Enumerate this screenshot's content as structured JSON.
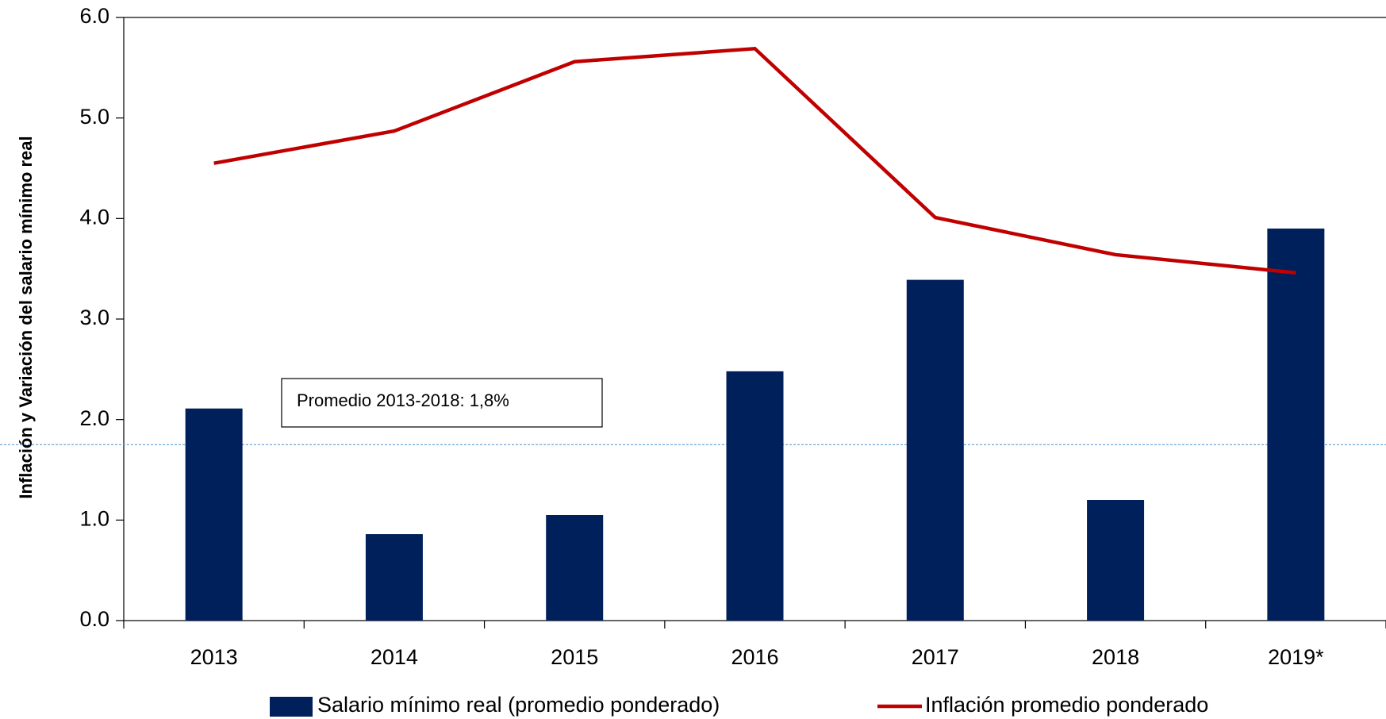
{
  "chart_data": {
    "type": "bar_line",
    "y_axis_label": "Inflación y Variación del salario mínimo real",
    "categories": [
      "2013",
      "2014",
      "2015",
      "2016",
      "2017",
      "2018",
      "2019*"
    ],
    "series": [
      {
        "name": "Salario mínimo real (promedio ponderado)",
        "type": "bar",
        "color": "#00205c",
        "values": [
          2.11,
          0.86,
          1.05,
          2.48,
          3.39,
          1.2,
          3.9
        ]
      },
      {
        "name": "Inflación promedio ponderado",
        "type": "line",
        "color": "#c00000",
        "values": [
          4.55,
          4.87,
          5.56,
          5.69,
          4.01,
          3.64,
          3.46
        ]
      }
    ],
    "reference_line": {
      "value": 1.75,
      "color": "#5b9bd5",
      "annotation": "Promedio 2013-2018: 1,8%"
    },
    "ylim": [
      0,
      6
    ],
    "yticks": [
      {
        "value": 0,
        "label": "0.0"
      },
      {
        "value": 1,
        "label": "1.0"
      },
      {
        "value": 2,
        "label": "2.0"
      },
      {
        "value": 3,
        "label": "3.0"
      },
      {
        "value": 4,
        "label": "4.0"
      },
      {
        "value": 5,
        "label": "5.0"
      },
      {
        "value": 6,
        "label": "6.0"
      }
    ],
    "legend": "bottom"
  }
}
